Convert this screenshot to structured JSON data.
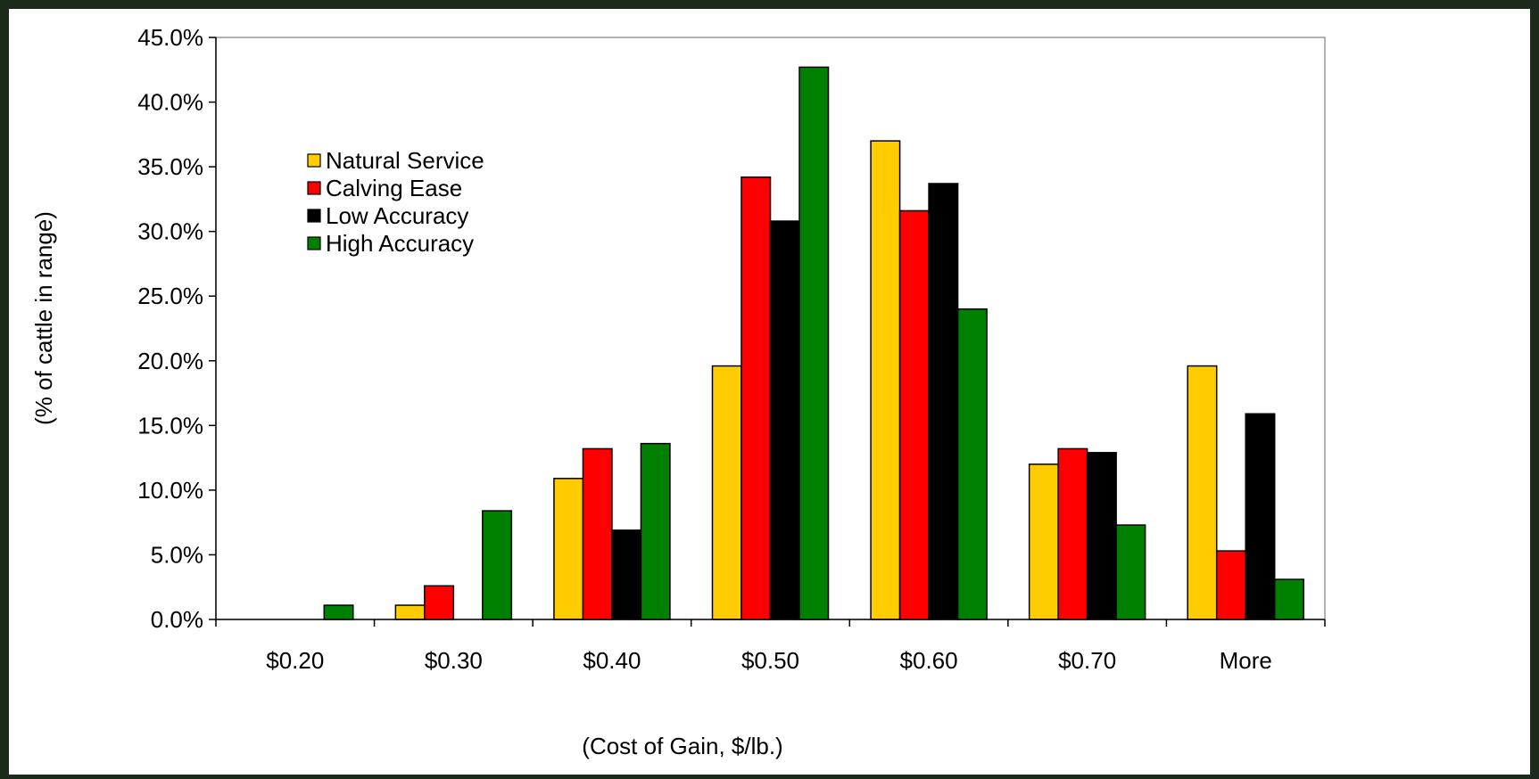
{
  "chart_data": {
    "type": "bar",
    "title": "",
    "xlabel": "(Cost of Gain, $/lb.)",
    "ylabel": "(% of cattle in range)",
    "categories": [
      "$0.20",
      "$0.30",
      "$0.40",
      "$0.50",
      "$0.60",
      "$0.70",
      "More"
    ],
    "ylim": [
      0,
      45
    ],
    "yticks": [
      0,
      5,
      10,
      15,
      20,
      25,
      30,
      35,
      40,
      45
    ],
    "ytick_labels": [
      "0.0%",
      "5.0%",
      "10.0%",
      "15.0%",
      "20.0%",
      "25.0%",
      "30.0%",
      "35.0%",
      "40.0%",
      "45.0%"
    ],
    "grid": false,
    "legend_position": "upper-left inside plot",
    "series": [
      {
        "name": "Natural Service",
        "color": "#FFCC00",
        "values": [
          0,
          1.1,
          10.9,
          19.6,
          37.0,
          12.0,
          19.6
        ]
      },
      {
        "name": "Calving Ease",
        "color": "#FF0000",
        "values": [
          0,
          2.6,
          13.2,
          34.2,
          31.6,
          13.2,
          5.3
        ]
      },
      {
        "name": "Low Accuracy",
        "color": "#000000",
        "values": [
          0,
          0,
          6.9,
          30.8,
          33.7,
          12.9,
          15.9
        ]
      },
      {
        "name": "High Accuracy",
        "color": "#008000",
        "values": [
          1.1,
          8.4,
          13.6,
          42.7,
          24.0,
          7.3,
          3.1
        ]
      }
    ]
  }
}
